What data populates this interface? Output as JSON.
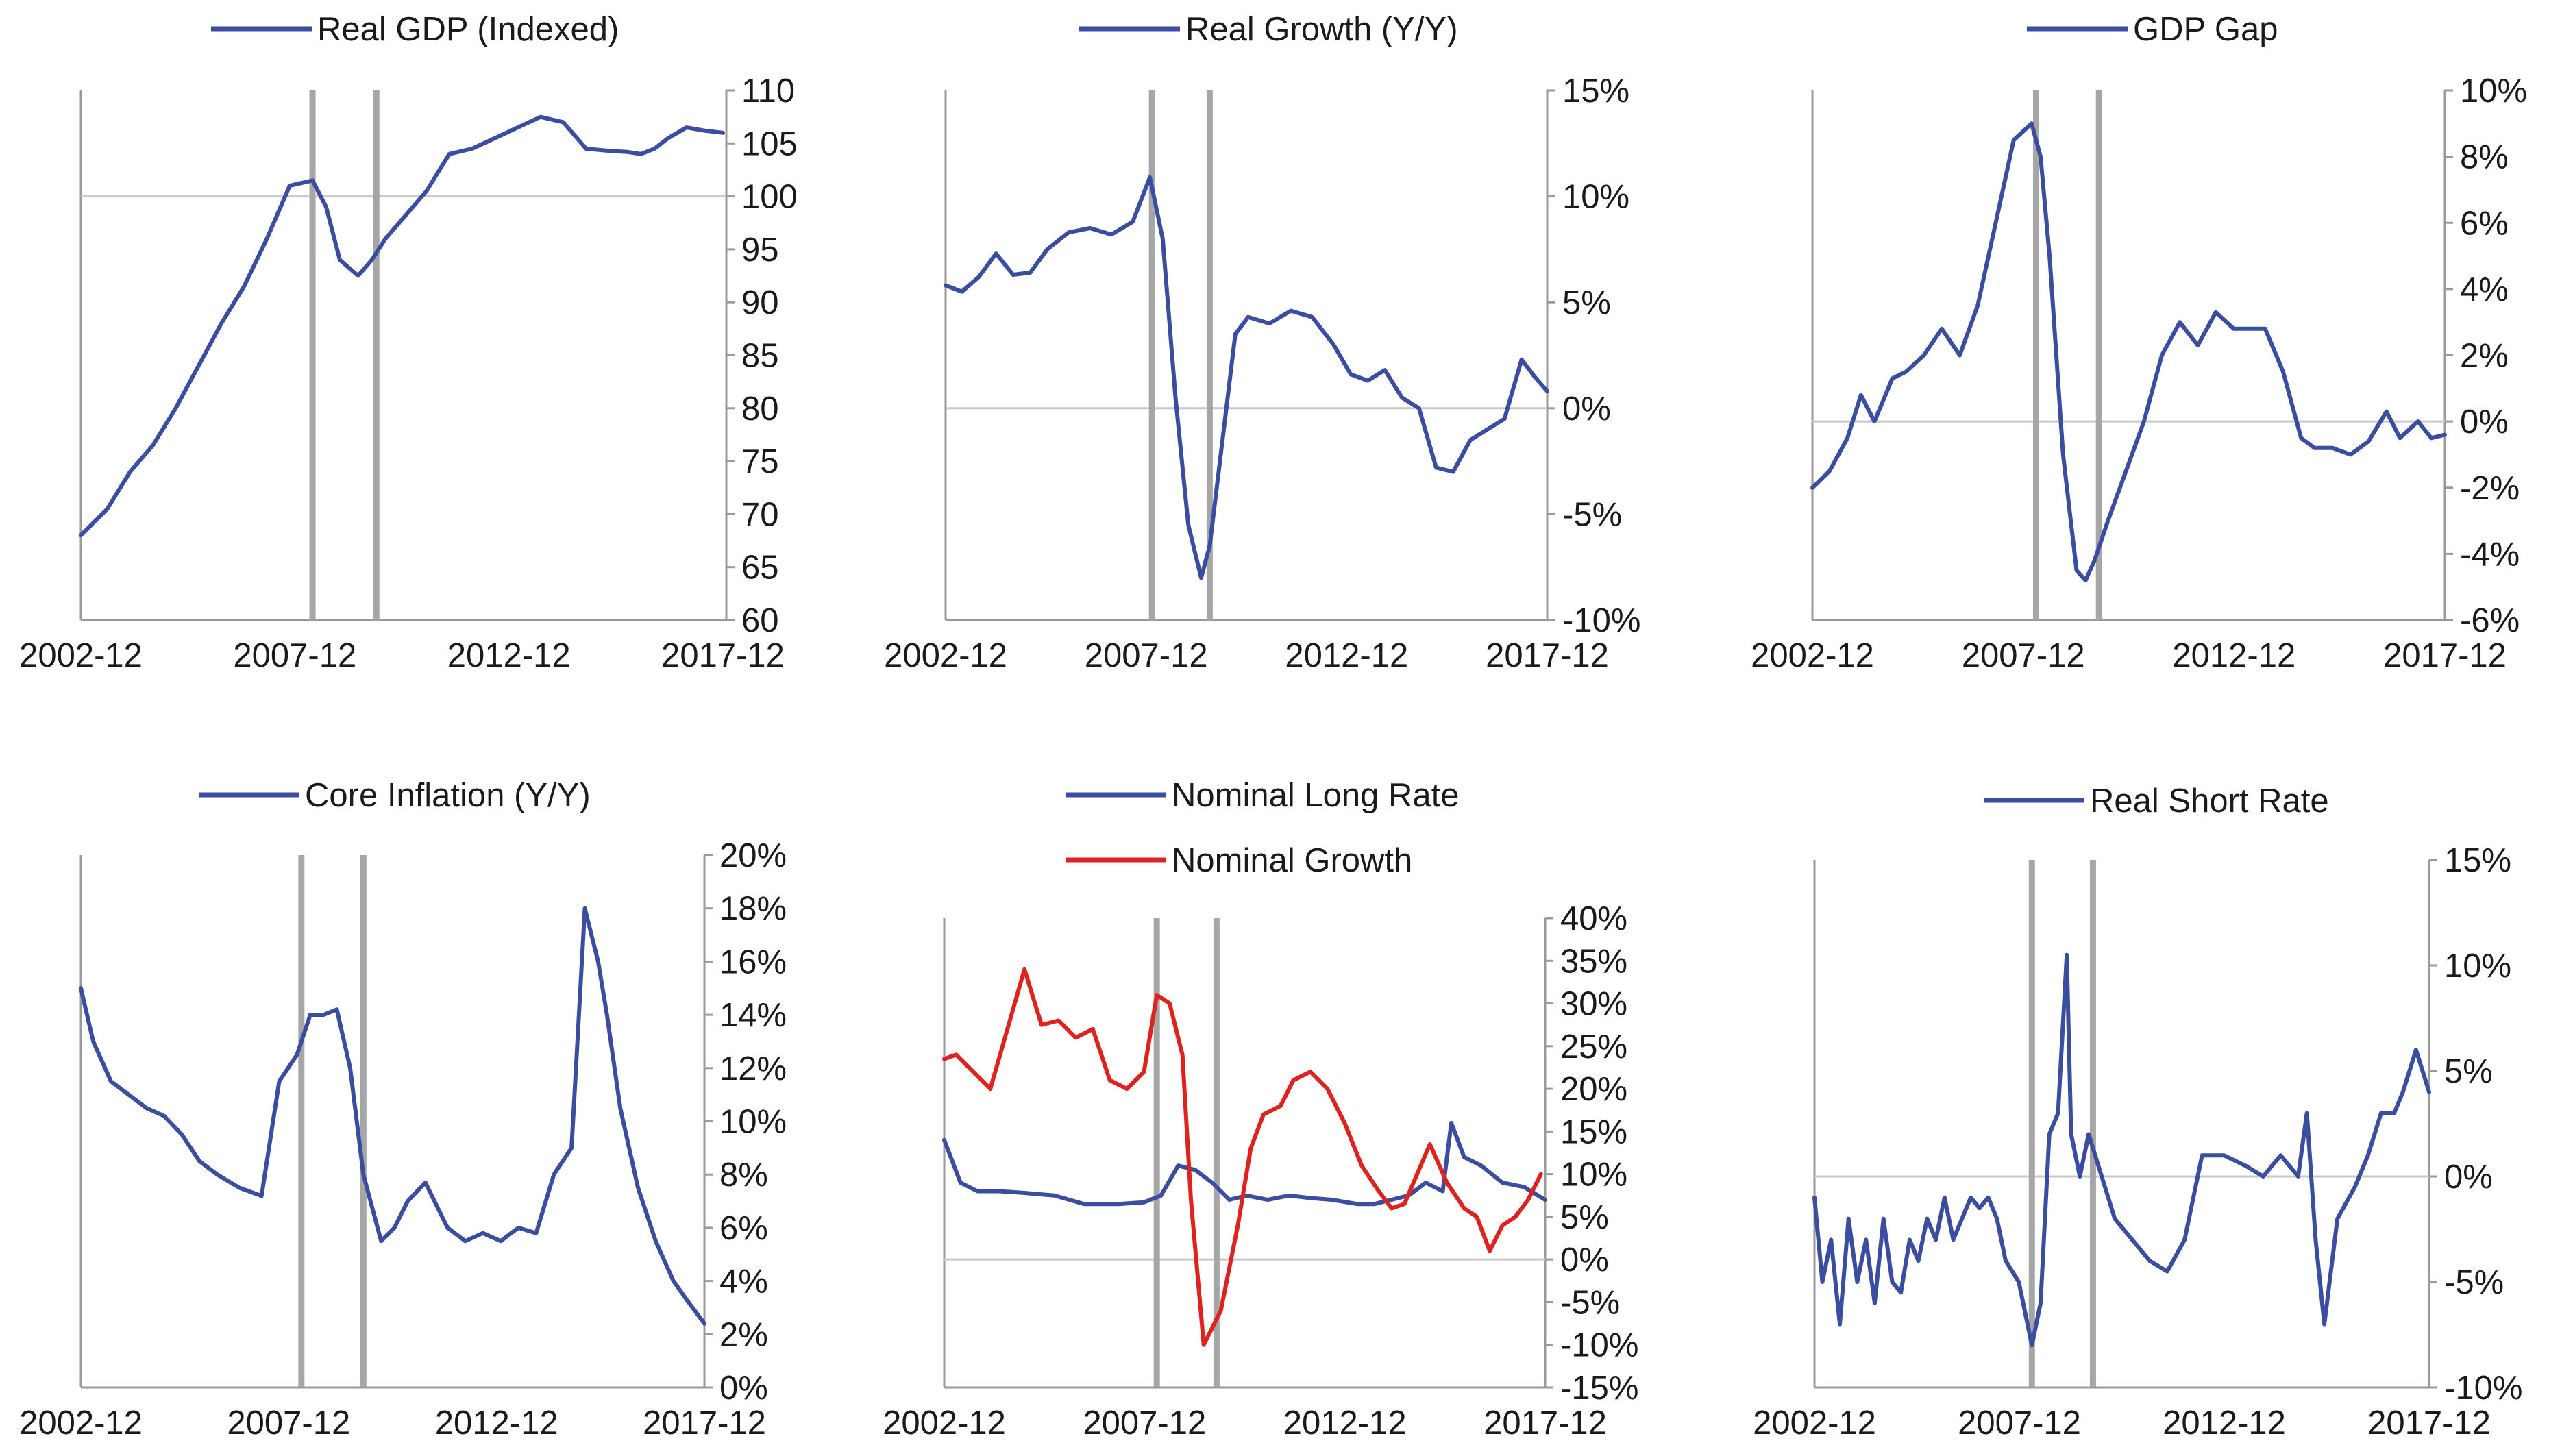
{
  "colors": {
    "blue": "#3a4da0",
    "red": "#e0221f",
    "recession": "#a6a6a6",
    "zero": "#c8c8c8",
    "axis": "#9a9a9a"
  },
  "chart_data": [
    {
      "type": "line",
      "legend": [
        "Real GDP (Indexed)"
      ],
      "x_ticks": [
        "2002-12",
        "2007-12",
        "2012-12",
        "2017-12"
      ],
      "xlim": [
        2002.92,
        2017.0
      ],
      "ylim": [
        60,
        110
      ],
      "y_ticks": [
        "60",
        "65",
        "70",
        "75",
        "80",
        "85",
        "90",
        "95",
        "100",
        "105",
        "110"
      ],
      "y_tick_values": [
        60,
        65,
        70,
        75,
        80,
        85,
        90,
        95,
        100,
        105,
        110
      ],
      "recession_lines": [
        2008.0,
        2009.4
      ],
      "reference_line": 100,
      "series": [
        {
          "name": "Real GDP (Indexed)",
          "color": "#3a4da0",
          "x": [
            2002.92,
            2003.5,
            2004.0,
            2004.5,
            2005.0,
            2005.5,
            2006.0,
            2006.5,
            2007.0,
            2007.5,
            2008.0,
            2008.3,
            2008.6,
            2009.0,
            2009.3,
            2009.6,
            2010.0,
            2010.5,
            2011.0,
            2011.5,
            2012.0,
            2012.5,
            2013.0,
            2013.5,
            2014.0,
            2014.5,
            2014.9,
            2015.2,
            2015.5,
            2015.8,
            2016.2,
            2016.6,
            2017.0
          ],
          "y": [
            68,
            70.5,
            74,
            76.5,
            80,
            84,
            88,
            91.5,
            96,
            101,
            101.5,
            99,
            94,
            92.5,
            94,
            96,
            98,
            100.5,
            104,
            104.5,
            105.5,
            106.5,
            107.5,
            107,
            104.5,
            104.3,
            104.2,
            104,
            104.5,
            105.5,
            106.5,
            106.2,
            106
          ]
        }
      ]
    },
    {
      "type": "line",
      "legend": [
        "Real Growth (Y/Y)"
      ],
      "x_ticks": [
        "2002-12",
        "2007-12",
        "2012-12",
        "2017-12"
      ],
      "xlim": [
        2002.92,
        2017.0
      ],
      "ylim": [
        -10,
        15
      ],
      "y_ticks": [
        "-10%",
        "-5%",
        "0%",
        "5%",
        "10%",
        "15%"
      ],
      "y_tick_values": [
        -10,
        -5,
        0,
        5,
        10,
        15
      ],
      "recession_lines": [
        2007.75,
        2009.1
      ],
      "reference_line": 0,
      "series": [
        {
          "name": "Real Growth (Y/Y)",
          "color": "#3a4da0",
          "x": [
            2002.92,
            2003.3,
            2003.7,
            2004.1,
            2004.5,
            2004.9,
            2005.3,
            2005.8,
            2006.3,
            2006.8,
            2007.3,
            2007.7,
            2008.0,
            2008.3,
            2008.6,
            2008.9,
            2009.1,
            2009.4,
            2009.7,
            2010.0,
            2010.5,
            2011.0,
            2011.5,
            2012.0,
            2012.4,
            2012.8,
            2013.2,
            2013.6,
            2014.0,
            2014.4,
            2014.8,
            2015.2,
            2015.6,
            2016.0,
            2016.4,
            2016.7,
            2017.0
          ],
          "y": [
            5.8,
            5.5,
            6.2,
            7.3,
            6.3,
            6.4,
            7.5,
            8.3,
            8.5,
            8.2,
            8.8,
            10.9,
            8.0,
            0.5,
            -5.5,
            -8.0,
            -6.5,
            -1.5,
            3.5,
            4.3,
            4.0,
            4.6,
            4.3,
            3.0,
            1.6,
            1.3,
            1.8,
            0.5,
            0.0,
            -2.8,
            -3.0,
            -1.5,
            -1.0,
            -0.5,
            2.3,
            1.5,
            0.8
          ]
        }
      ]
    },
    {
      "type": "line",
      "legend": [
        "GDP Gap"
      ],
      "x_ticks": [
        "2002-12",
        "2007-12",
        "2012-12",
        "2017-12"
      ],
      "xlim": [
        2002.92,
        2017.0
      ],
      "ylim": [
        -6,
        10
      ],
      "y_ticks": [
        "-6%",
        "-4%",
        "-2%",
        "0%",
        "2%",
        "4%",
        "6%",
        "8%",
        "10%"
      ],
      "y_tick_values": [
        -6,
        -4,
        -2,
        0,
        2,
        4,
        6,
        8,
        10
      ],
      "recession_lines": [
        2007.9,
        2009.3
      ],
      "reference_line": 0,
      "series": [
        {
          "name": "GDP Gap",
          "color": "#3a4da0",
          "x": [
            2002.92,
            2003.3,
            2003.7,
            2004.0,
            2004.3,
            2004.7,
            2005.0,
            2005.4,
            2005.8,
            2006.2,
            2006.6,
            2007.0,
            2007.4,
            2007.8,
            2008.0,
            2008.2,
            2008.5,
            2008.8,
            2009.0,
            2009.2,
            2009.5,
            2009.9,
            2010.3,
            2010.7,
            2011.1,
            2011.5,
            2011.9,
            2012.3,
            2012.7,
            2013.0,
            2013.4,
            2013.8,
            2014.1,
            2014.5,
            2014.9,
            2015.3,
            2015.7,
            2016.0,
            2016.4,
            2016.7,
            2017.0
          ],
          "y": [
            -2.0,
            -1.5,
            -0.5,
            0.8,
            0.0,
            1.3,
            1.5,
            2.0,
            2.8,
            2.0,
            3.5,
            6.0,
            8.5,
            9.0,
            8.0,
            5.0,
            -1.0,
            -4.5,
            -4.8,
            -4.2,
            -3.0,
            -1.5,
            0.0,
            2.0,
            3.0,
            2.3,
            3.3,
            2.8,
            2.8,
            2.8,
            1.5,
            -0.5,
            -0.8,
            -0.8,
            -1.0,
            -0.6,
            0.3,
            -0.5,
            0.0,
            -0.5,
            -0.4
          ]
        }
      ]
    },
    {
      "type": "line",
      "legend": [
        "Core Inflation (Y/Y)"
      ],
      "x_ticks": [
        "2002-12",
        "2007-12",
        "2012-12",
        "2017-12"
      ],
      "xlim": [
        2002.92,
        2017.0
      ],
      "ylim": [
        0,
        20
      ],
      "y_ticks": [
        "0%",
        "2%",
        "4%",
        "6%",
        "8%",
        "10%",
        "12%",
        "14%",
        "16%",
        "18%",
        "20%"
      ],
      "y_tick_values": [
        0,
        2,
        4,
        6,
        8,
        10,
        12,
        14,
        16,
        18,
        20
      ],
      "recession_lines": [
        2007.9,
        2009.3
      ],
      "reference_line": null,
      "series": [
        {
          "name": "Core Inflation (Y/Y)",
          "color": "#3a4da0",
          "x": [
            2002.92,
            2003.2,
            2003.6,
            2004.0,
            2004.4,
            2004.8,
            2005.2,
            2005.6,
            2006.0,
            2006.5,
            2007.0,
            2007.4,
            2007.8,
            2008.1,
            2008.4,
            2008.7,
            2009.0,
            2009.3,
            2009.7,
            2010.0,
            2010.3,
            2010.7,
            2011.2,
            2011.6,
            2012.0,
            2012.4,
            2012.8,
            2013.2,
            2013.6,
            2014.0,
            2014.3,
            2014.6,
            2014.8,
            2015.1,
            2015.5,
            2015.9,
            2016.3,
            2016.6,
            2017.0
          ],
          "y": [
            15.0,
            13.0,
            11.5,
            11.0,
            10.5,
            10.2,
            9.5,
            8.5,
            8.0,
            7.5,
            7.2,
            11.5,
            12.5,
            14.0,
            14.0,
            14.2,
            12.0,
            8.0,
            5.5,
            6.0,
            7.0,
            7.7,
            6.0,
            5.5,
            5.8,
            5.5,
            6.0,
            5.8,
            8.0,
            9.0,
            18.0,
            16.0,
            14.0,
            10.5,
            7.5,
            5.5,
            4.0,
            3.3,
            2.4
          ]
        }
      ]
    },
    {
      "type": "line",
      "legend": [
        "Nominal Long Rate",
        "Nominal Growth"
      ],
      "x_ticks": [
        "2002-12",
        "2007-12",
        "2012-12",
        "2017-12"
      ],
      "xlim": [
        2002.92,
        2017.0
      ],
      "ylim": [
        -15,
        40
      ],
      "y_ticks": [
        "-15%",
        "-10%",
        "-5%",
        "0%",
        "5%",
        "10%",
        "15%",
        "20%",
        "25%",
        "30%",
        "35%",
        "40%"
      ],
      "y_tick_values": [
        -15,
        -10,
        -5,
        0,
        5,
        10,
        15,
        20,
        25,
        30,
        35,
        40
      ],
      "recession_lines": [
        2007.9,
        2009.3
      ],
      "reference_line": 0,
      "series": [
        {
          "name": "Nominal Long Rate",
          "color": "#3a4da0",
          "x": [
            2002.92,
            2003.3,
            2003.7,
            2004.2,
            2004.8,
            2005.5,
            2006.2,
            2007.0,
            2007.6,
            2008.0,
            2008.4,
            2008.8,
            2009.2,
            2009.6,
            2010.0,
            2010.5,
            2011.0,
            2011.5,
            2012.0,
            2012.6,
            2013.0,
            2013.4,
            2013.8,
            2014.2,
            2014.6,
            2014.8,
            2015.1,
            2015.5,
            2016.0,
            2016.5,
            2017.0
          ],
          "y": [
            14,
            9,
            8,
            8,
            7.8,
            7.5,
            6.5,
            6.5,
            6.7,
            7.5,
            11,
            10.5,
            9,
            7,
            7.5,
            7,
            7.5,
            7.2,
            7,
            6.5,
            6.5,
            7,
            7.5,
            9,
            8,
            16,
            12,
            11,
            9,
            8.5,
            7
          ]
        },
        {
          "name": "Nominal Growth",
          "color": "#e0221f",
          "x": [
            2002.92,
            2003.2,
            2003.6,
            2004.0,
            2004.4,
            2004.8,
            2005.2,
            2005.6,
            2006.0,
            2006.4,
            2006.8,
            2007.2,
            2007.6,
            2007.9,
            2008.2,
            2008.5,
            2008.7,
            2009.0,
            2009.4,
            2009.8,
            2010.1,
            2010.4,
            2010.8,
            2011.1,
            2011.5,
            2011.9,
            2012.3,
            2012.7,
            2013.1,
            2013.4,
            2013.7,
            2014.0,
            2014.3,
            2014.7,
            2015.1,
            2015.4,
            2015.7,
            2016.0,
            2016.3,
            2016.6,
            2016.9
          ],
          "y": [
            23.5,
            24,
            22,
            20,
            27,
            34,
            27.5,
            28,
            26,
            27,
            21,
            20,
            22,
            31,
            30,
            24,
            7,
            -10,
            -6,
            4,
            13,
            17,
            18,
            21,
            22,
            20,
            16,
            11,
            8,
            6,
            6.5,
            10,
            13.5,
            9,
            6,
            5,
            1,
            4,
            5,
            7,
            10
          ]
        }
      ]
    },
    {
      "type": "line",
      "legend": [
        "Real Short Rate"
      ],
      "x_ticks": [
        "2002-12",
        "2007-12",
        "2012-12",
        "2017-12"
      ],
      "xlim": [
        2002.92,
        2017.0
      ],
      "ylim": [
        -10,
        15
      ],
      "y_ticks": [
        "-10%",
        "-5%",
        "0%",
        "5%",
        "10%",
        "15%"
      ],
      "y_tick_values": [
        -10,
        -5,
        0,
        5,
        10,
        15
      ],
      "recession_lines": [
        2007.9,
        2009.3
      ],
      "reference_line": 0,
      "series": [
        {
          "name": "Real Short Rate",
          "color": "#3a4da0",
          "x": [
            2002.92,
            2003.1,
            2003.3,
            2003.5,
            2003.7,
            2003.9,
            2004.1,
            2004.3,
            2004.5,
            2004.7,
            2004.9,
            2005.1,
            2005.3,
            2005.5,
            2005.7,
            2005.9,
            2006.1,
            2006.3,
            2006.5,
            2006.7,
            2006.9,
            2007.1,
            2007.3,
            2007.6,
            2007.9,
            2008.1,
            2008.3,
            2008.5,
            2008.7,
            2008.8,
            2009.0,
            2009.2,
            2009.5,
            2009.8,
            2010.2,
            2010.6,
            2011.0,
            2011.4,
            2011.8,
            2012.3,
            2012.8,
            2013.2,
            2013.6,
            2014.0,
            2014.2,
            2014.4,
            2014.6,
            2014.9,
            2015.3,
            2015.6,
            2015.9,
            2016.2,
            2016.4,
            2016.7,
            2017.0
          ],
          "y": [
            -1,
            -5,
            -3,
            -7,
            -2,
            -5,
            -3,
            -6,
            -2,
            -5,
            -5.5,
            -3,
            -4,
            -2,
            -3,
            -1,
            -3,
            -2,
            -1,
            -1.5,
            -1,
            -2,
            -4,
            -5,
            -8,
            -6,
            2,
            3,
            10.5,
            2,
            0,
            2,
            0,
            -2,
            -3,
            -4,
            -4.5,
            -3,
            1,
            1,
            0.5,
            0,
            1,
            0,
            3,
            -3,
            -7,
            -2,
            -0.5,
            1,
            3,
            3,
            4,
            6,
            4
          ]
        }
      ]
    }
  ]
}
